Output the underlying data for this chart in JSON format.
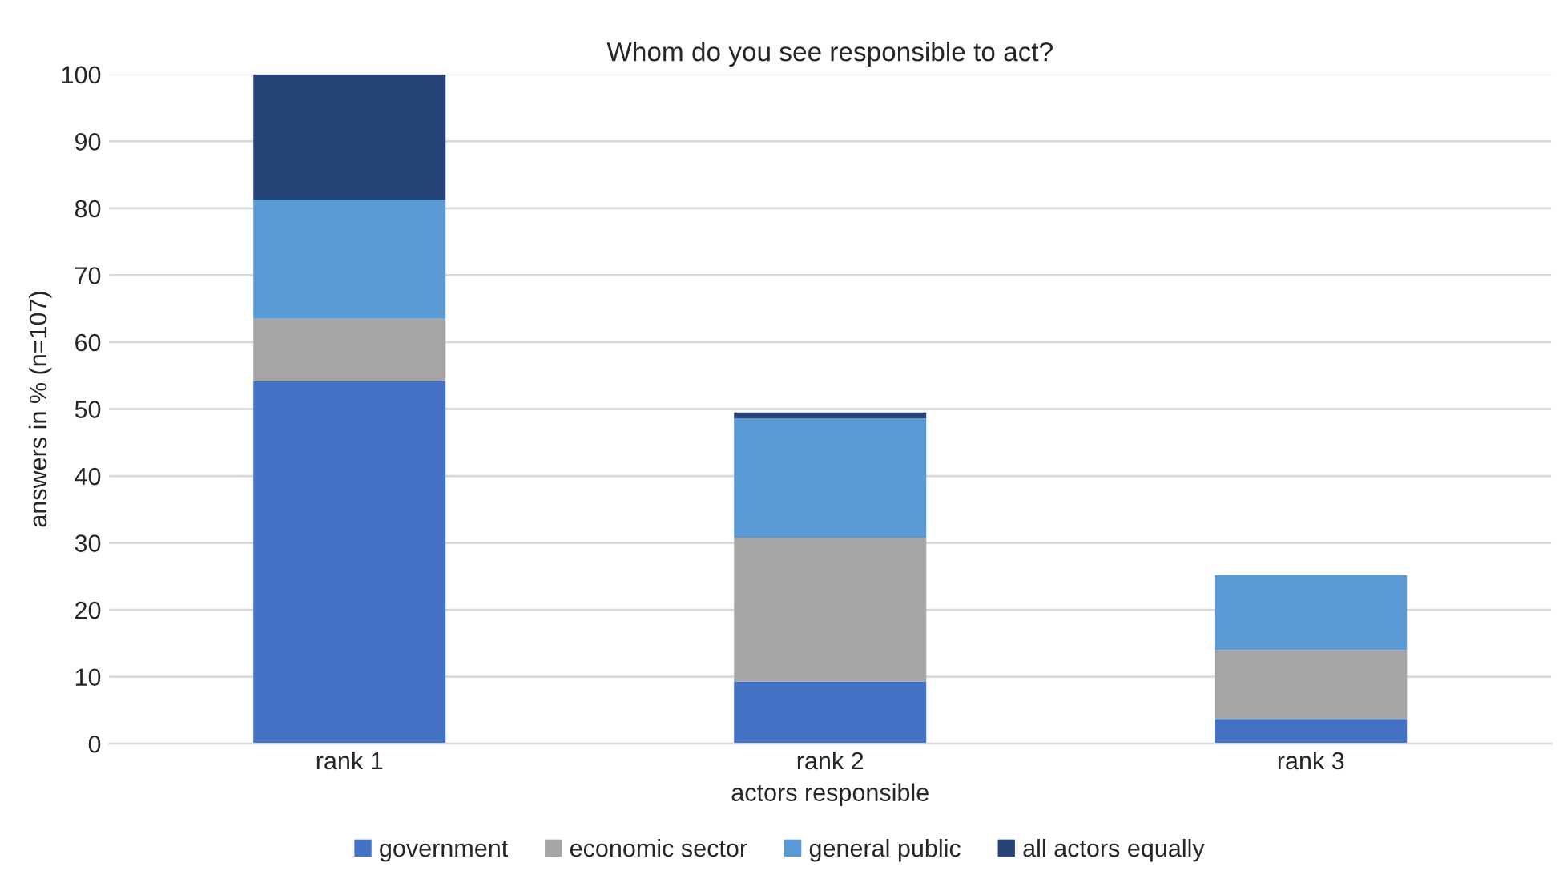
{
  "chart_data": {
    "type": "bar",
    "stacked": true,
    "title": "Whom do you see responsible to act?",
    "xlabel": "actors responsible",
    "ylabel": "answers in % (n=107)",
    "categories": [
      "rank 1",
      "rank 2",
      "rank 3"
    ],
    "series": [
      {
        "name": "government",
        "color": "#4472c4",
        "values": [
          54.2,
          9.3,
          3.7
        ]
      },
      {
        "name": "economic sector",
        "color": "#a5a5a5",
        "values": [
          9.3,
          21.5,
          10.3
        ]
      },
      {
        "name": "general public",
        "color": "#5b9bd5",
        "values": [
          17.8,
          17.8,
          11.2
        ]
      },
      {
        "name": "all actors equally",
        "color": "#264478",
        "values": [
          18.7,
          0.9,
          null
        ]
      }
    ],
    "ylim": [
      0,
      100
    ],
    "yticks": [
      0,
      10,
      20,
      30,
      40,
      50,
      60,
      70,
      80,
      90,
      100
    ],
    "grid": "y",
    "legend": "bottom"
  }
}
